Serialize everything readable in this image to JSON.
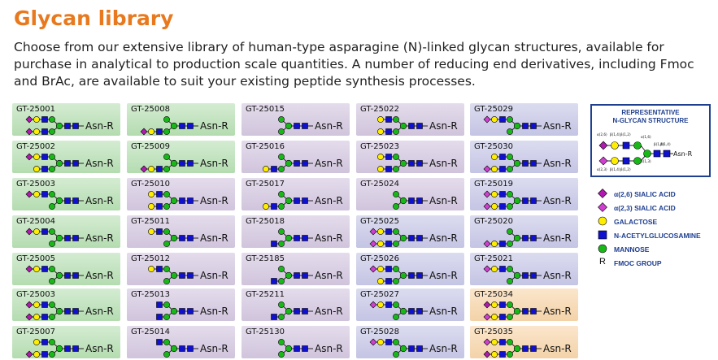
{
  "page": {
    "title": "Glycan library",
    "intro": "Choose from our extensive library of human-type asparagine (N)-linked glycan structures, available for purchase in analytical to production scale quantities. A number of reducing end derivatives, including Fmoc and BrAc, are available to suit your existing peptide synthesis processes."
  },
  "suffix": "Asn-R",
  "colors": {
    "galactose": "#ffee00",
    "glcnac": "#1010d0",
    "mannose": "#18b818",
    "sialic26": "#b01ab0",
    "sialic23": "#d040d0",
    "title": "#e8791e",
    "legend_text": "#1f3f8f"
  },
  "columns": [
    [
      {
        "id": "GT-25001",
        "bg": "green",
        "t": {
          "s": "s26",
          "g": true,
          "n": true
        },
        "b": {
          "s": "s26",
          "g": true,
          "n": true
        }
      },
      {
        "id": "GT-25002",
        "bg": "green",
        "t": {
          "s": "s26",
          "g": true,
          "n": true
        },
        "b": {
          "g": true,
          "n": true
        }
      },
      {
        "id": "GT-25003",
        "bg": "green",
        "t": {
          "s": "s26",
          "g": true,
          "n": true
        },
        "b": {}
      },
      {
        "id": "GT-25004",
        "bg": "green",
        "t": {
          "s": "s26",
          "g": true,
          "n": true
        },
        "b": {}
      },
      {
        "id": "GT-25005",
        "bg": "green",
        "t": {
          "s": "s26",
          "g": true,
          "n": true
        },
        "b": {}
      },
      {
        "id": "GT-25003",
        "bg": "green",
        "t": {
          "s": "s26",
          "g": true,
          "n": true
        },
        "b": {
          "s": "s26",
          "g": true,
          "n": true
        }
      },
      {
        "id": "GT-25007",
        "bg": "green",
        "t": {
          "g": true,
          "n": true
        },
        "b": {
          "s": "s26",
          "g": true,
          "n": true
        }
      }
    ],
    [
      {
        "id": "GT-25008",
        "bg": "green",
        "t": {},
        "b": {
          "s": "s26",
          "g": true,
          "n": true
        }
      },
      {
        "id": "GT-25009",
        "bg": "green",
        "t": {},
        "b": {
          "s": "s26",
          "g": true,
          "n": true
        }
      },
      {
        "id": "GT-25010",
        "bg": "lav",
        "t": {
          "g": true,
          "n": true
        },
        "b": {
          "g": true,
          "n": true
        }
      },
      {
        "id": "GT-25011",
        "bg": "lav",
        "t": {
          "g": true,
          "n": true
        },
        "b": {}
      },
      {
        "id": "GT-25012",
        "bg": "lav",
        "t": {
          "g": true,
          "n": true
        },
        "b": {}
      },
      {
        "id": "GT-25013",
        "bg": "lav",
        "t": {
          "n": true
        },
        "b": {
          "n": true
        }
      },
      {
        "id": "GT-25014",
        "bg": "lav",
        "t": {
          "n": true
        },
        "b": {}
      }
    ],
    [
      {
        "id": "GT-25015",
        "bg": "lav",
        "t": {},
        "b": {}
      },
      {
        "id": "GT-25016",
        "bg": "lav",
        "t": {},
        "b": {
          "g": true,
          "n": true
        }
      },
      {
        "id": "GT-25017",
        "bg": "lav",
        "t": {},
        "b": {
          "g": true,
          "n": true
        }
      },
      {
        "id": "GT-25018",
        "bg": "lav",
        "t": {},
        "b": {
          "n": true
        }
      },
      {
        "id": "GT-25185",
        "bg": "lav",
        "t": {},
        "b": {
          "n": true
        }
      },
      {
        "id": "GT-25211",
        "bg": "lav",
        "t": {},
        "b": {
          "n": true
        }
      },
      {
        "id": "GT-25130",
        "bg": "lav",
        "t": {},
        "b": {}
      }
    ],
    [
      {
        "id": "GT-25022",
        "bg": "lav",
        "t": {
          "g": true,
          "n": true
        },
        "b": {
          "g": true,
          "n": true
        }
      },
      {
        "id": "GT-25023",
        "bg": "lav",
        "t": {
          "g": true,
          "n": true
        },
        "b": {
          "g": true,
          "n": true
        }
      },
      {
        "id": "GT-25024",
        "bg": "lav",
        "t": {},
        "b": {}
      },
      {
        "id": "GT-25025",
        "bg": "blue",
        "t": {
          "s": "s23",
          "g": true,
          "n": true
        },
        "b": {
          "s": "s23",
          "g": true,
          "n": true
        }
      },
      {
        "id": "GT-25026",
        "bg": "blue",
        "t": {
          "s": "s23",
          "g": true,
          "n": true
        },
        "b": {
          "g": true,
          "n": true
        }
      },
      {
        "id": "GT-25027",
        "bg": "blue",
        "t": {
          "s": "s23",
          "g": true,
          "n": true
        },
        "b": {}
      },
      {
        "id": "GT-25028",
        "bg": "blue",
        "t": {
          "s": "s23",
          "g": true,
          "n": true
        },
        "b": {}
      }
    ],
    [
      {
        "id": "GT-25029",
        "bg": "blue",
        "t": {
          "s": "s23",
          "g": true,
          "n": true
        },
        "b": {}
      },
      {
        "id": "GT-25030",
        "bg": "blue",
        "t": {
          "g": true,
          "n": true
        },
        "b": {
          "s": "s23",
          "g": true,
          "n": true
        }
      },
      {
        "id": "GT-25019",
        "bg": "blue",
        "t": {
          "s": "s23",
          "g": true,
          "n": true
        },
        "b": {
          "s": "s23",
          "g": true,
          "n": true
        }
      },
      {
        "id": "GT-25020",
        "bg": "blue",
        "t": {},
        "b": {
          "s": "s23",
          "g": true,
          "n": true
        }
      },
      {
        "id": "GT-25021",
        "bg": "blue",
        "t": {
          "s": "s23",
          "g": true,
          "n": true
        },
        "b": {}
      },
      {
        "id": "GT-25034",
        "bg": "peach",
        "t": {
          "s": "s26",
          "g": true,
          "n": true
        },
        "b": {
          "s": "s23",
          "g": true,
          "n": true
        }
      },
      {
        "id": "GT-25035",
        "bg": "peach",
        "t": {
          "s": "s23",
          "g": true,
          "n": true
        },
        "b": {
          "s": "s26",
          "g": true,
          "n": true
        }
      }
    ]
  ],
  "structure_box": {
    "title_line1": "REPRESENTATIVE",
    "title_line2": "N-GLYCAN STRUCTURE",
    "labels": [
      "α(2,6)",
      "β(1,4)",
      "β(1,2)",
      "α(1,6)",
      "β(1,4)",
      "β(1,4)",
      "α(1,3)",
      "α(2,3)",
      "β(1,4)",
      "β(1,2)"
    ],
    "suffix": "Asn-R"
  },
  "legend": [
    {
      "sym": "sialic26",
      "label": "α(2,6) SIALIC ACID"
    },
    {
      "sym": "sialic23",
      "label": "α(2,3) SIALIC ACID"
    },
    {
      "sym": "galactose",
      "label": "GALACTOSE"
    },
    {
      "sym": "glcnac",
      "label": "N-ACETYLGLUCOSAMINE"
    },
    {
      "sym": "mannose",
      "label": "MANNOSE"
    },
    {
      "sym": "R",
      "letter": "R",
      "label": "FMOC GROUP"
    }
  ]
}
